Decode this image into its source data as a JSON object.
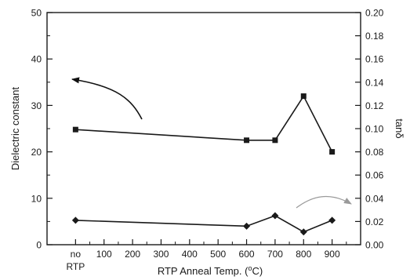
{
  "chart_data": {
    "type": "line",
    "xlabel_main": "RTP Anneal Temp. (",
    "xlabel_sup": "o",
    "xlabel_end": "C)",
    "ylabel_left": "Dielectric constant",
    "ylabel_right": "tanδ",
    "x_ticks": [
      {
        "value": 0,
        "label": "no",
        "label2": "RTP"
      },
      {
        "value": 100,
        "label": "100"
      },
      {
        "value": 200,
        "label": "200"
      },
      {
        "value": 300,
        "label": "300"
      },
      {
        "value": 400,
        "label": "400"
      },
      {
        "value": 500,
        "label": "500"
      },
      {
        "value": 600,
        "label": "600"
      },
      {
        "value": 700,
        "label": "700"
      },
      {
        "value": 800,
        "label": "800"
      },
      {
        "value": 900,
        "label": "900"
      }
    ],
    "xlim": [
      -100,
      1000
    ],
    "ylim_left": [
      0,
      50
    ],
    "yticks_left": [
      "0",
      "10",
      "20",
      "30",
      "40",
      "50"
    ],
    "ylim_right": [
      0,
      0.2
    ],
    "yticks_right": [
      "0.00",
      "0.02",
      "0.04",
      "0.06",
      "0.08",
      "0.10",
      "0.12",
      "0.14",
      "0.16",
      "0.18",
      "0.20"
    ],
    "grid": false,
    "series": [
      {
        "axis": "left",
        "marker": "square",
        "x": [
          0,
          600,
          700,
          800,
          900
        ],
        "y": [
          24.8,
          22.5,
          22.5,
          32,
          20
        ]
      },
      {
        "axis": "right",
        "marker": "diamond",
        "x": [
          0,
          600,
          700,
          800,
          900
        ],
        "y": [
          0.021,
          0.016,
          0.025,
          0.011,
          0.021
        ]
      }
    ],
    "annotations": [
      {
        "type": "arrow",
        "points_to": "left",
        "color": "#000000"
      },
      {
        "type": "arrow",
        "points_to": "right",
        "color": "#9a9a9a"
      }
    ]
  }
}
